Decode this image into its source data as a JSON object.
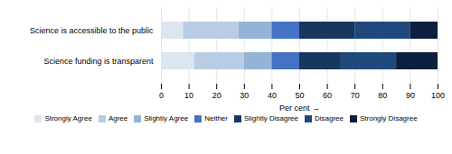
{
  "chart_data": {
    "type": "bar",
    "orientation": "horizontal",
    "stacked": true,
    "xlabel": "Per cent",
    "categories": [
      "Science is accessible to the public",
      "Science funding is transparent"
    ],
    "series": [
      {
        "name": "Strongly Agree",
        "color": "#dce6f1",
        "values": [
          8,
          12
        ]
      },
      {
        "name": "Agree",
        "color": "#b8cce4",
        "values": [
          20,
          18
        ]
      },
      {
        "name": "Slightly Agree",
        "color": "#95b3d7",
        "values": [
          12,
          10
        ]
      },
      {
        "name": "Neither",
        "color": "#4472c4",
        "values": [
          10,
          10
        ]
      },
      {
        "name": "Slightly Disagree",
        "color": "#17375e",
        "values": [
          20,
          15
        ]
      },
      {
        "name": "Disagree",
        "color": "#1f497d",
        "values": [
          20,
          20
        ]
      },
      {
        "name": "Strongly Disagree",
        "color": "#0d1f40",
        "values": [
          10,
          15
        ]
      }
    ],
    "xlim": [
      0,
      100
    ],
    "xticks": [
      0,
      10,
      20,
      30,
      40,
      50,
      60,
      70,
      80,
      90,
      100
    ],
    "grid": true,
    "legend": "bottom"
  }
}
